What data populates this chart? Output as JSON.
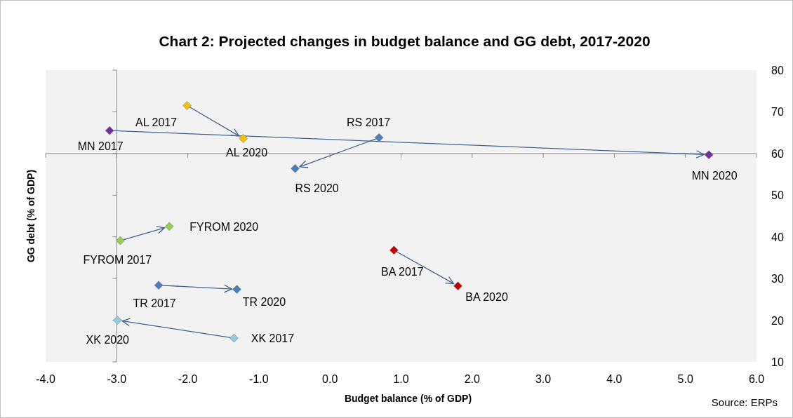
{
  "chart_data": {
    "type": "scatter",
    "title": "Chart 2: Projected changes in budget balance and GG debt, 2017-2020",
    "xlabel": "Budget balance (% of GDP)",
    "ylabel": "GG debt (% of GDP)",
    "xlim": [
      -4,
      6
    ],
    "xticks": [
      {
        "value": -4,
        "label": "-4.0"
      },
      {
        "value": -3,
        "label": "-3.0"
      },
      {
        "value": -2,
        "label": "-2.0"
      },
      {
        "value": -1,
        "label": "-1.0"
      },
      {
        "value": 0,
        "label": "0.0"
      },
      {
        "value": 1,
        "label": "1.0"
      },
      {
        "value": 2,
        "label": "2.0"
      },
      {
        "value": 3,
        "label": "3.0"
      },
      {
        "value": 4,
        "label": "4.0"
      },
      {
        "value": 5,
        "label": "5.0"
      },
      {
        "value": 6,
        "label": "6.0"
      }
    ],
    "ylim": [
      10,
      80
    ],
    "yticks": [
      10,
      20,
      30,
      40,
      50,
      60,
      70,
      80
    ],
    "marker": "diamond",
    "ref_lines": [
      {
        "axis": "x",
        "value": -3,
        "color": "#8c8c8c"
      },
      {
        "axis": "y",
        "value": 60,
        "color": "#8c8c8c"
      }
    ],
    "series": [
      {
        "color": "#f5c000",
        "x": [
          -2.01,
          -1.22
        ],
        "values": [
          71.5,
          63.6
        ]
      },
      {
        "color": "#7030a0",
        "x": [
          -3.1,
          5.33
        ],
        "values": [
          65.5,
          59.7
        ]
      },
      {
        "color": "#4a7ebb",
        "x": [
          0.69,
          -0.49
        ],
        "values": [
          63.8,
          56.4
        ]
      },
      {
        "color": "#92d050",
        "x": [
          -2.95,
          -2.26
        ],
        "values": [
          39.1,
          42.5
        ]
      },
      {
        "color": "#4a7ebb",
        "x": [
          -2.41,
          -1.31
        ],
        "values": [
          28.4,
          27.4
        ]
      },
      {
        "color": "#93cddd",
        "x": [
          -1.35,
          -2.99
        ],
        "values": [
          15.7,
          20.0
        ]
      },
      {
        "color": "#c00000",
        "x": [
          0.9,
          1.8
        ],
        "values": [
          36.8,
          28.2
        ]
      }
    ],
    "annotations": [
      {
        "text": "AL 2017",
        "x": -2.01,
        "y": 71.5
      },
      {
        "text": "AL 2020",
        "x": -1.22,
        "y": 63.6
      },
      {
        "text": "MN 2017",
        "x": -3.1,
        "y": 65.5
      },
      {
        "text": "MN 2020",
        "x": 5.33,
        "y": 59.7
      },
      {
        "text": "RS 2017",
        "x": 0.69,
        "y": 63.8
      },
      {
        "text": "RS 2020",
        "x": -0.49,
        "y": 56.4
      },
      {
        "text": "FYROM 2017",
        "x": -2.95,
        "y": 39.1
      },
      {
        "text": "FYROM 2020",
        "x": -2.26,
        "y": 42.5
      },
      {
        "text": "TR 2017",
        "x": -2.41,
        "y": 28.4
      },
      {
        "text": "TR 2020",
        "x": -1.31,
        "y": 27.4
      },
      {
        "text": "XK 2017",
        "x": -1.35,
        "y": 15.7
      },
      {
        "text": "XK 2020",
        "x": -2.99,
        "y": 20.0
      },
      {
        "text": "BA 2017",
        "x": 0.9,
        "y": 36.8
      },
      {
        "text": "BA 2020",
        "x": 1.8,
        "y": 28.2
      },
      "Source: ERPs"
    ]
  }
}
